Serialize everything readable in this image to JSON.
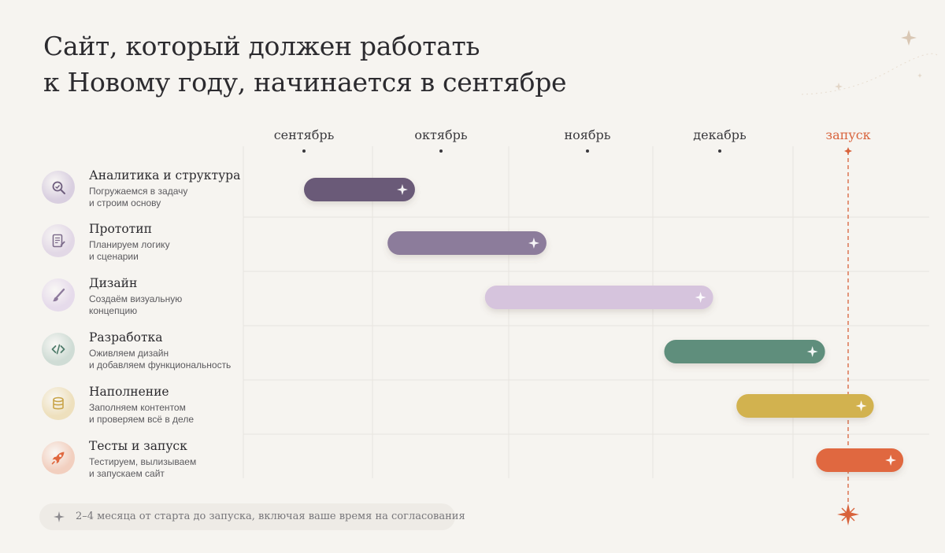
{
  "title": {
    "line1": "Сайт, который должен работать",
    "line2": "к Новому году, начинается в сентябре"
  },
  "chart_data": {
    "type": "gantt",
    "columns": [
      "сентябрь",
      "октябрь",
      "ноябрь",
      "декабрь",
      "запуск"
    ],
    "launch_label": "запуск",
    "colors": {
      "launch": "#d8623b",
      "grid": "#e7e4df"
    },
    "tasks": [
      {
        "name": "Аналитика и структура",
        "desc": [
          "Погружаемся в задачу",
          "и строим основу"
        ],
        "start": 0.0,
        "end": 0.81,
        "color": "#6a5a78",
        "icon": "magnifier-icon",
        "icon_bg": "#d9cfe0",
        "icon_fg": "#6f5e7e"
      },
      {
        "name": "Прототип",
        "desc": [
          "Планируем логику",
          "и сценарии"
        ],
        "start": 0.61,
        "end": 1.72,
        "color": "#8c7b9b",
        "icon": "document-icon",
        "icon_bg": "#e2d8e6",
        "icon_fg": "#7e6d8c"
      },
      {
        "name": "Дизайн",
        "desc": [
          "Создаём визуальную",
          "концепцию"
        ],
        "start": 1.3,
        "end": 2.95,
        "color": "#d6c4dd",
        "icon": "brush-icon",
        "icon_bg": "#e6dbeb",
        "icon_fg": "#8d7a9c"
      },
      {
        "name": "Разработка",
        "desc": [
          "Оживляем дизайн",
          "и добавляем функциональность"
        ],
        "start": 2.58,
        "end": 3.82,
        "color": "#5f8e7c",
        "icon": "code-icon",
        "icon_bg": "#cfdcd5",
        "icon_fg": "#4e7b6a"
      },
      {
        "name": "Наполнение",
        "desc": [
          "Заполняем контентом",
          "и проверяем всё в деле"
        ],
        "start": 3.13,
        "end": 4.2,
        "color": "#d2b250",
        "icon": "database-icon",
        "icon_bg": "#eee0bd",
        "icon_fg": "#c9a54a"
      },
      {
        "name": "Тесты и запуск",
        "desc": [
          "Тестируем, вылизываем",
          "и запускаем сайт"
        ],
        "start": 3.75,
        "end": 4.43,
        "color": "#e0683f",
        "icon": "rocket-icon",
        "icon_bg": "#f2cfbf",
        "icon_fg": "#e0683f"
      }
    ]
  },
  "note": "2–4 месяца от старта до запуска, включая ваше время на согласования"
}
